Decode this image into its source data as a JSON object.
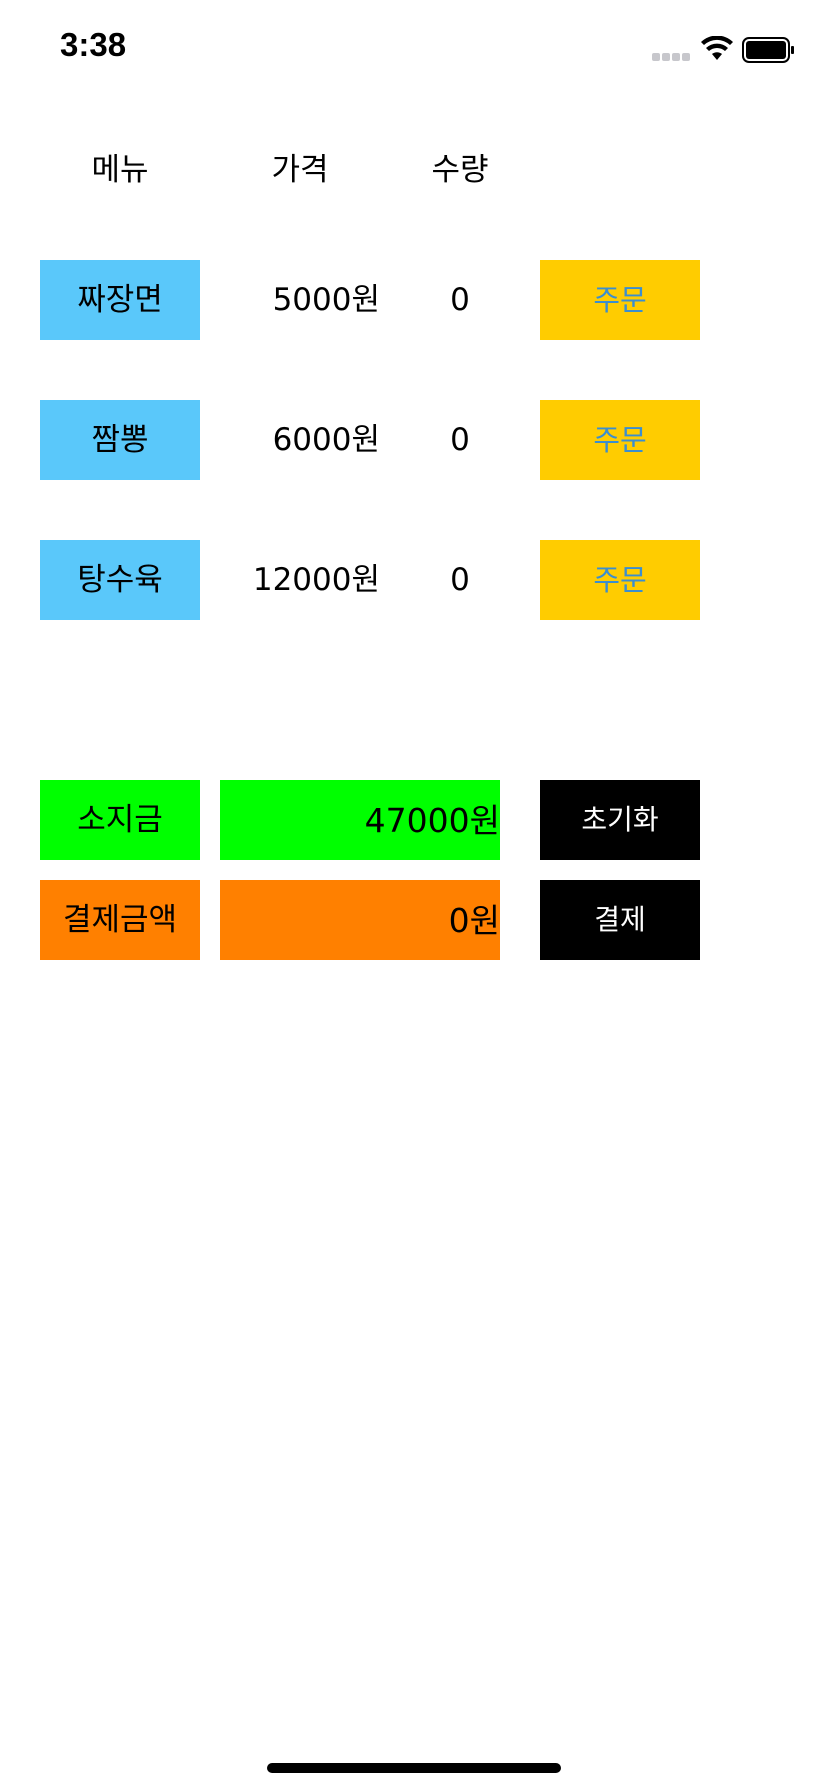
{
  "status_bar": {
    "time": "3:38",
    "signal_icon": "cellular-signal-icon",
    "wifi_icon": "wifi-icon",
    "battery_icon": "battery-icon"
  },
  "header": {
    "menu": "메뉴",
    "price": "가격",
    "quantity": "수량"
  },
  "items": [
    {
      "name": "짜장면",
      "price": "5000원",
      "quantity": "0",
      "order_label": "주문"
    },
    {
      "name": "짬뽕",
      "price": "6000원",
      "quantity": "0",
      "order_label": "주문"
    },
    {
      "name": "탕수육",
      "price": "12000원",
      "quantity": "0",
      "order_label": "주문"
    }
  ],
  "wallet": {
    "label": "소지금",
    "value": "47000원",
    "reset_label": "초기화"
  },
  "payment": {
    "label": "결제금액",
    "value": "0원",
    "pay_label": "결제"
  },
  "colors": {
    "menu_button_bg": "#5ac8fa",
    "order_button_bg": "#ffcc00",
    "order_button_text": "#3b8ecf",
    "wallet_bg": "#00ff00",
    "payment_bg": "#ff8000",
    "action_button_bg": "#000000"
  }
}
